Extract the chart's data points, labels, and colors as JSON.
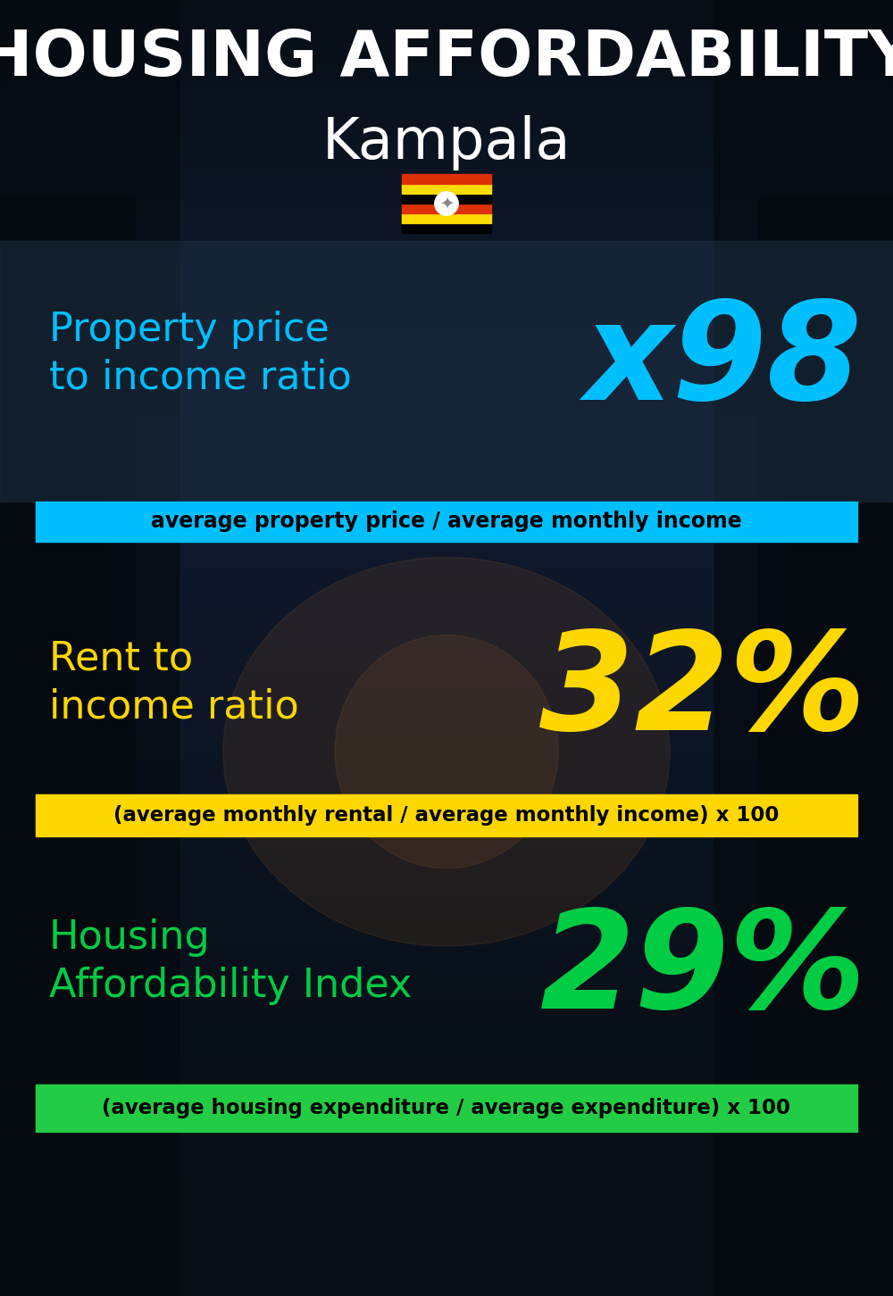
{
  "title_line1": "HOUSING AFFORDABILITY",
  "title_line2": "Kampala",
  "flag_text": "🇺🇬",
  "section1_label": "Property price\nto income ratio",
  "section1_value": "x98",
  "section1_label_color": "#00BFFF",
  "section1_value_color": "#00BFFF",
  "section1_formula": "average property price / average monthly income",
  "section1_formula_bg": "#00BFFF",
  "section2_label": "Rent to\nincome ratio",
  "section2_value": "32%",
  "section2_label_color": "#FFD700",
  "section2_value_color": "#FFD700",
  "section2_formula": "(average monthly rental / average monthly income) x 100",
  "section2_formula_bg": "#FFD700",
  "section3_label": "Housing\nAffordability Index",
  "section3_value": "29%",
  "section3_label_color": "#00CC44",
  "section3_value_color": "#00CC44",
  "section3_formula": "(average housing expenditure / average expenditure) x 100",
  "section3_formula_bg": "#22CC44",
  "bg_color": "#060d14",
  "title_color": "#FFFFFF",
  "formula_text_color": "#000000",
  "figwidth": 10.0,
  "figheight": 14.52,
  "dpi": 100
}
